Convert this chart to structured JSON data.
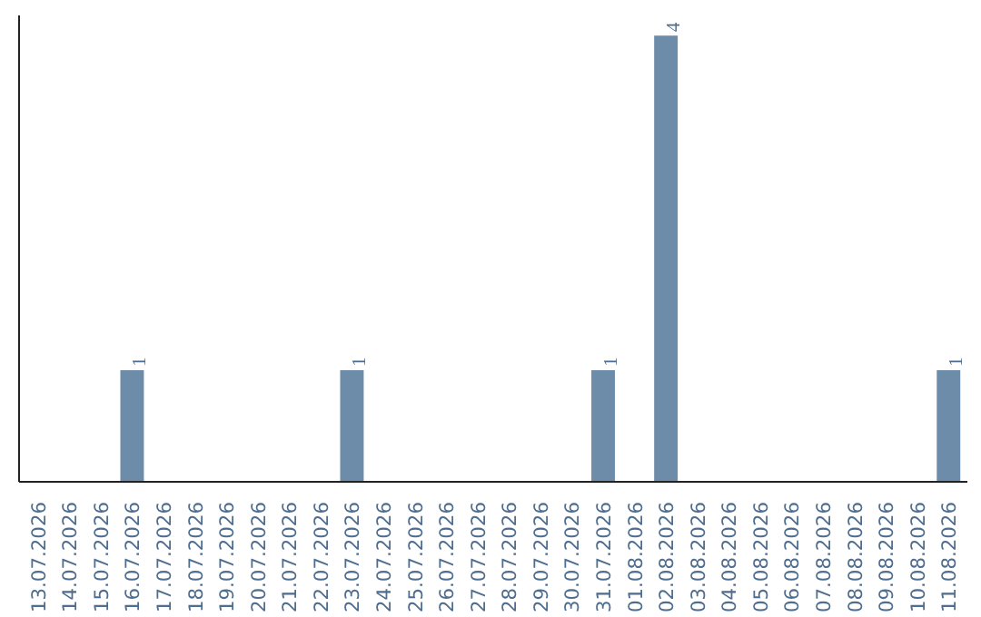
{
  "chart_data": {
    "type": "bar",
    "categories": [
      "13.07.2026",
      "14.07.2026",
      "15.07.2026",
      "16.07.2026",
      "17.07.2026",
      "18.07.2026",
      "19.07.2026",
      "20.07.2026",
      "21.07.2026",
      "22.07.2026",
      "23.07.2026",
      "24.07.2026",
      "25.07.2026",
      "26.07.2026",
      "27.07.2026",
      "28.07.2026",
      "29.07.2026",
      "30.07.2026",
      "31.07.2026",
      "01.08.2026",
      "02.08.2026",
      "03.08.2026",
      "04.08.2026",
      "05.08.2026",
      "06.08.2026",
      "07.08.2026",
      "08.08.2026",
      "09.08.2026",
      "10.08.2026",
      "11.08.2026"
    ],
    "values": [
      0,
      0,
      0,
      1,
      0,
      0,
      0,
      0,
      0,
      0,
      1,
      0,
      0,
      0,
      0,
      0,
      0,
      0,
      1,
      0,
      4,
      0,
      0,
      0,
      0,
      0,
      0,
      0,
      0,
      1
    ],
    "value_labels": [
      null,
      null,
      null,
      "1",
      null,
      null,
      null,
      null,
      null,
      null,
      "1",
      null,
      null,
      null,
      null,
      null,
      null,
      null,
      "1",
      null,
      "4",
      null,
      null,
      null,
      null,
      null,
      null,
      null,
      null,
      "1"
    ],
    "color": "#6d8caa"
  }
}
